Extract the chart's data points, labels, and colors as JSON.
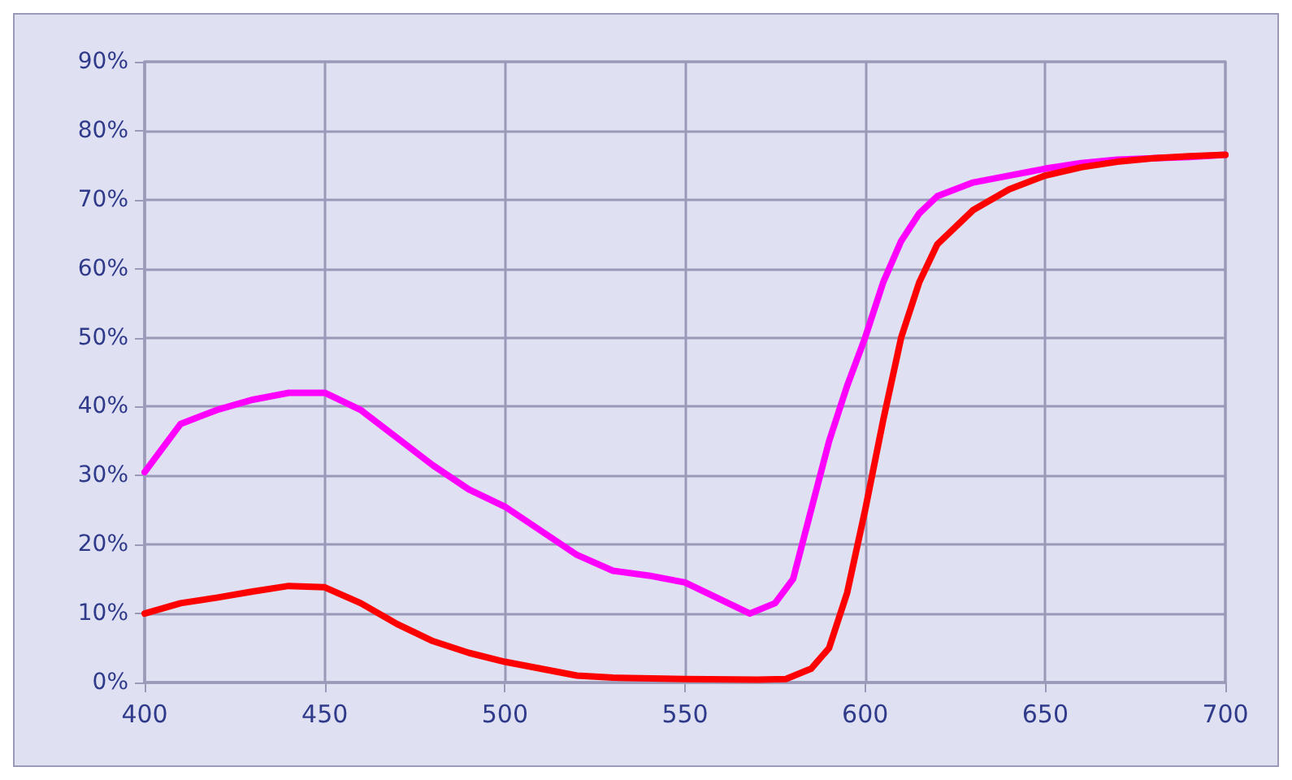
{
  "chart_data": {
    "type": "line",
    "xlim": [
      400,
      700
    ],
    "xticks": [
      400,
      450,
      500,
      550,
      600,
      650,
      700
    ],
    "ylim": [
      0,
      90
    ],
    "yticks": [
      {
        "value": 0,
        "label": "0%"
      },
      {
        "value": 10,
        "label": "10%"
      },
      {
        "value": 20,
        "label": "20%"
      },
      {
        "value": 30,
        "label": "30%"
      },
      {
        "value": 40,
        "label": "40%"
      },
      {
        "value": 50,
        "label": "50%"
      },
      {
        "value": 60,
        "label": "60%"
      },
      {
        "value": 70,
        "label": "70%"
      },
      {
        "value": 80,
        "label": "80%"
      },
      {
        "value": 90,
        "label": "90%"
      }
    ],
    "grid": true,
    "marker": "none",
    "line_style": "solid",
    "series": [
      {
        "color": "#ff00ff",
        "x": [
          400,
          410,
          420,
          430,
          440,
          450,
          460,
          470,
          480,
          490,
          500,
          510,
          520,
          530,
          540,
          550,
          560,
          568,
          575,
          580,
          585,
          590,
          595,
          600,
          605,
          610,
          615,
          620,
          630,
          640,
          650,
          660,
          670,
          680,
          690,
          700
        ],
        "values": [
          30.5,
          37.5,
          39.5,
          41,
          42,
          42,
          39.5,
          35.5,
          31.5,
          28,
          25.5,
          22,
          18.5,
          16.2,
          15.5,
          14.5,
          12,
          10,
          11.5,
          15,
          25,
          35,
          43,
          50,
          58,
          64,
          68,
          70.5,
          72.5,
          73.5,
          74.5,
          75.3,
          75.8,
          76,
          76.2,
          76.5
        ]
      },
      {
        "color": "#ff0000",
        "x": [
          400,
          410,
          420,
          430,
          440,
          450,
          460,
          470,
          480,
          490,
          500,
          510,
          520,
          530,
          550,
          570,
          578,
          585,
          590,
          595,
          600,
          605,
          610,
          615,
          620,
          630,
          640,
          650,
          660,
          670,
          680,
          690,
          700
        ],
        "values": [
          10,
          11.5,
          12.3,
          13.2,
          14,
          13.8,
          11.5,
          8.5,
          6,
          4.3,
          3,
          2,
          1,
          0.7,
          0.5,
          0.4,
          0.5,
          2,
          5,
          13,
          25,
          38,
          50,
          58,
          63.5,
          68.5,
          71.5,
          73.5,
          74.7,
          75.5,
          76,
          76.3,
          76.5
        ]
      }
    ]
  }
}
